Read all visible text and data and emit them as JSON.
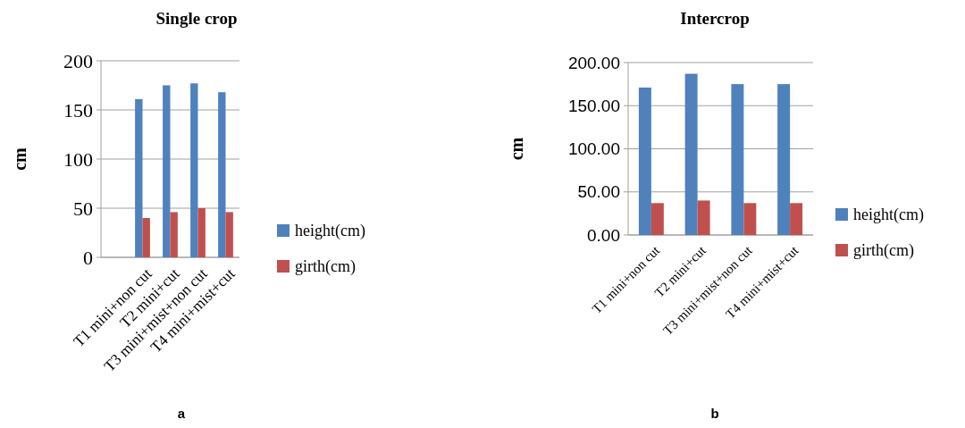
{
  "chart_data": [
    {
      "type": "bar",
      "title": "Single crop",
      "ylabel": "cm",
      "categories": [
        null,
        "T1 mini+non cut",
        "T2 mini+cut",
        "T3 mini+mist+non cut",
        "T4 mini+mist+cut"
      ],
      "series": [
        {
          "name": "height(cm)",
          "color": "#4f81bd",
          "values": [
            null,
            161,
            175,
            177,
            168
          ]
        },
        {
          "name": "girth(cm)",
          "color": "#c0504d",
          "values": [
            null,
            40,
            46,
            50,
            46
          ]
        }
      ],
      "ylim": [
        0,
        200
      ],
      "yticks": [
        0,
        50,
        100,
        150,
        200
      ],
      "grid": "y",
      "legend": "right",
      "annotations": [
        "a"
      ]
    },
    {
      "type": "bar",
      "title": "Intercrop",
      "ylabel": "cm",
      "categories": [
        "T1 mini+non cut",
        "T2 mini+cut",
        "T3 mini+mist+non cut",
        "T4 mini+mist+cut"
      ],
      "series": [
        {
          "name": "height(cm)",
          "color": "#4f81bd",
          "values": [
            171,
            187,
            175,
            175
          ]
        },
        {
          "name": "girth(cm)",
          "color": "#c0504d",
          "values": [
            37,
            40,
            37,
            37
          ]
        }
      ],
      "ylim": [
        0,
        200
      ],
      "yticks": [
        {
          "value": 0,
          "label": "0.00"
        },
        {
          "value": 50,
          "label": "50.00"
        },
        {
          "value": 100,
          "label": "100.00"
        },
        {
          "value": 150,
          "label": "150.00"
        },
        {
          "value": 200,
          "label": "200.00"
        }
      ],
      "grid": "y",
      "legend": "right",
      "annotations": [
        "b"
      ]
    }
  ]
}
